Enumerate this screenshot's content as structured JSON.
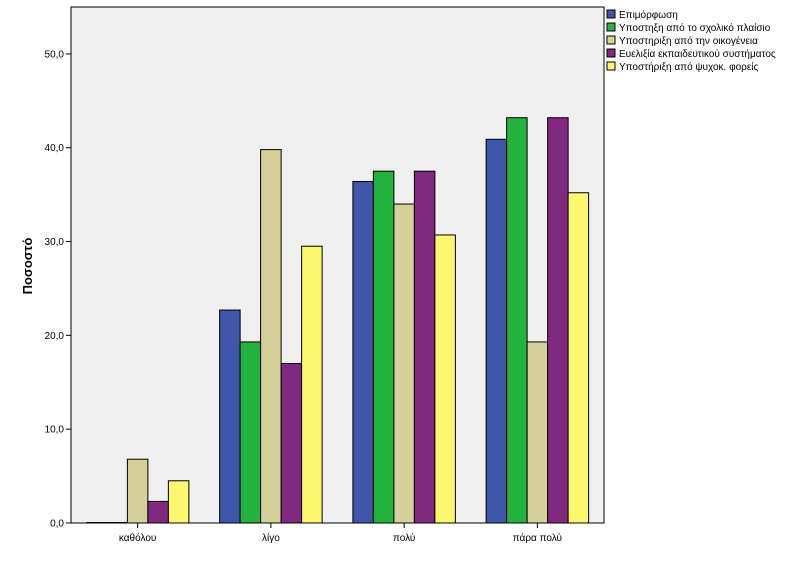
{
  "chart_data": {
    "type": "bar",
    "ylabel": "Ποσοστό",
    "xlabel": "",
    "ylim": [
      0,
      55
    ],
    "yticks": [
      "0,0",
      "10,0",
      "20,0",
      "30,0",
      "40,0",
      "50,0"
    ],
    "ytick_values": [
      0,
      10,
      20,
      30,
      40,
      50
    ],
    "categories": [
      "καθόλου",
      "λίγο",
      "πολύ",
      "πάρα πολύ"
    ],
    "series": [
      {
        "name": "Επιμόρφωση",
        "color": "#3f55a9",
        "values": [
          0,
          22.7,
          36.4,
          40.9
        ]
      },
      {
        "name": "Υποστηξη από το σχολικό πλαίσιο",
        "color": "#23b23b",
        "values": [
          0,
          19.3,
          37.5,
          43.2
        ]
      },
      {
        "name": "Υποστηριξη από την οικογένεια",
        "color": "#d5cf9a",
        "values": [
          6.8,
          39.8,
          34.0,
          19.3
        ]
      },
      {
        "name": "Ευελιξία εκπαιδευτικού συστήματος",
        "color": "#7f2a7e",
        "values": [
          2.3,
          17.0,
          37.5,
          43.2
        ]
      },
      {
        "name": "Υποστήριξη από ψυχοκ. φορείς",
        "color": "#fbf86e",
        "values": [
          4.5,
          29.5,
          30.7,
          35.2
        ]
      }
    ],
    "grid": false,
    "legend_position": "top-right"
  }
}
